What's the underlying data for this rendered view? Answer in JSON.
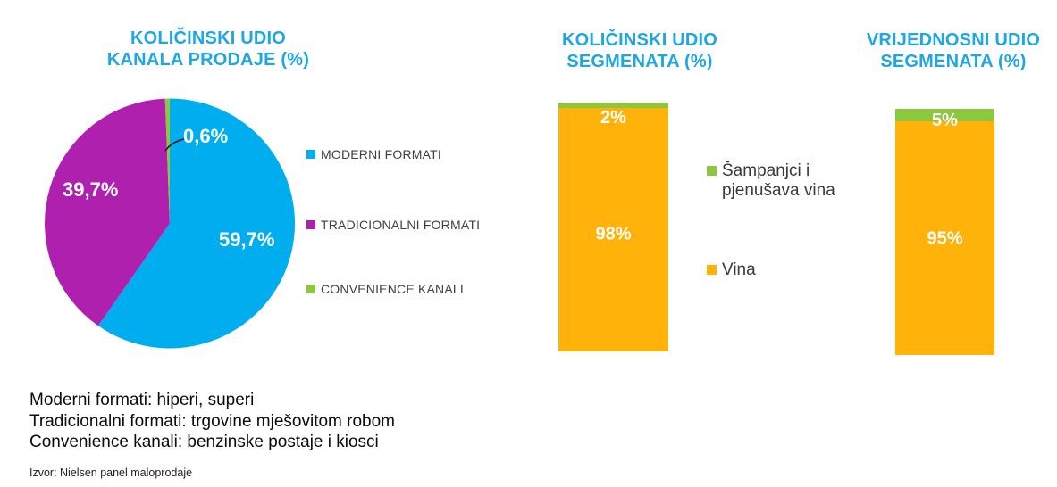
{
  "colors": {
    "title_blue": "#1ea7e0",
    "pie_blue": "#00aeef",
    "magenta": "#b020af",
    "green": "#8dc63f",
    "orange": "#ffb30a",
    "value_label_white": "#ffffff",
    "legend_text": "#3f3f3f",
    "body_text": "#0a0a0a",
    "background": "#ffffff"
  },
  "chart_data": [
    {
      "id": "pie-kanala-prodaje",
      "type": "pie",
      "title_lines": [
        "KOLIČINSKI UDIO",
        "KANALA PRODAJE (%)"
      ],
      "unit": "%",
      "start_angle_deg": 0,
      "direction": "clockwise",
      "legend_position": "right",
      "slices": [
        {
          "label": "MODERNI FORMATI",
          "value": 59.7,
          "display": "59,7%",
          "color": "#00aeef"
        },
        {
          "label": "TRADICIONALNI FORMATI",
          "value": 39.7,
          "display": "39,7%",
          "color": "#b020af"
        },
        {
          "label": "CONVENIENCE KANALI",
          "value": 0.6,
          "display": "0,6%",
          "color": "#8dc63f"
        }
      ]
    },
    {
      "id": "bar-kolicinski-udio-segmenata",
      "type": "bar",
      "subtype": "stacked-percent",
      "title_lines": [
        "KOLIČINSKI UDIO",
        "SEGMENATA (%)"
      ],
      "unit": "%",
      "ylim": [
        0,
        100
      ],
      "grid": false,
      "segments": [
        {
          "label": "Šampanjci i pjenušava vina",
          "value": 2,
          "display": "2%",
          "color": "#8dc63f"
        },
        {
          "label": "Vina",
          "value": 98,
          "display": "98%",
          "color": "#ffb30a"
        }
      ]
    },
    {
      "id": "bar-vrijednosni-udio-segmenata",
      "type": "bar",
      "subtype": "stacked-percent",
      "title_lines": [
        "VRIJEDNOSNI UDIO",
        "SEGMENATA (%)"
      ],
      "unit": "%",
      "ylim": [
        0,
        100
      ],
      "grid": false,
      "segments": [
        {
          "label": "Šampanjci i pjenušava vina",
          "value": 5,
          "display": "5%",
          "color": "#8dc63f"
        },
        {
          "label": "Vina",
          "value": 95,
          "display": "95%",
          "color": "#ffb30a"
        }
      ]
    }
  ],
  "bar_legend": [
    {
      "lines": [
        "Šampanjci i",
        "pjenušava vina"
      ],
      "color": "#8dc63f"
    },
    {
      "lines": [
        "Vina"
      ],
      "color": "#ffb30a"
    }
  ],
  "footnotes": [
    "Moderni formati: hiperi, superi",
    "Tradicionalni formati: trgovine mješovitom robom",
    "Convenience kanali: benzinske postaje i kiosci"
  ],
  "source": "Izvor: Nielsen panel maloprodaje"
}
